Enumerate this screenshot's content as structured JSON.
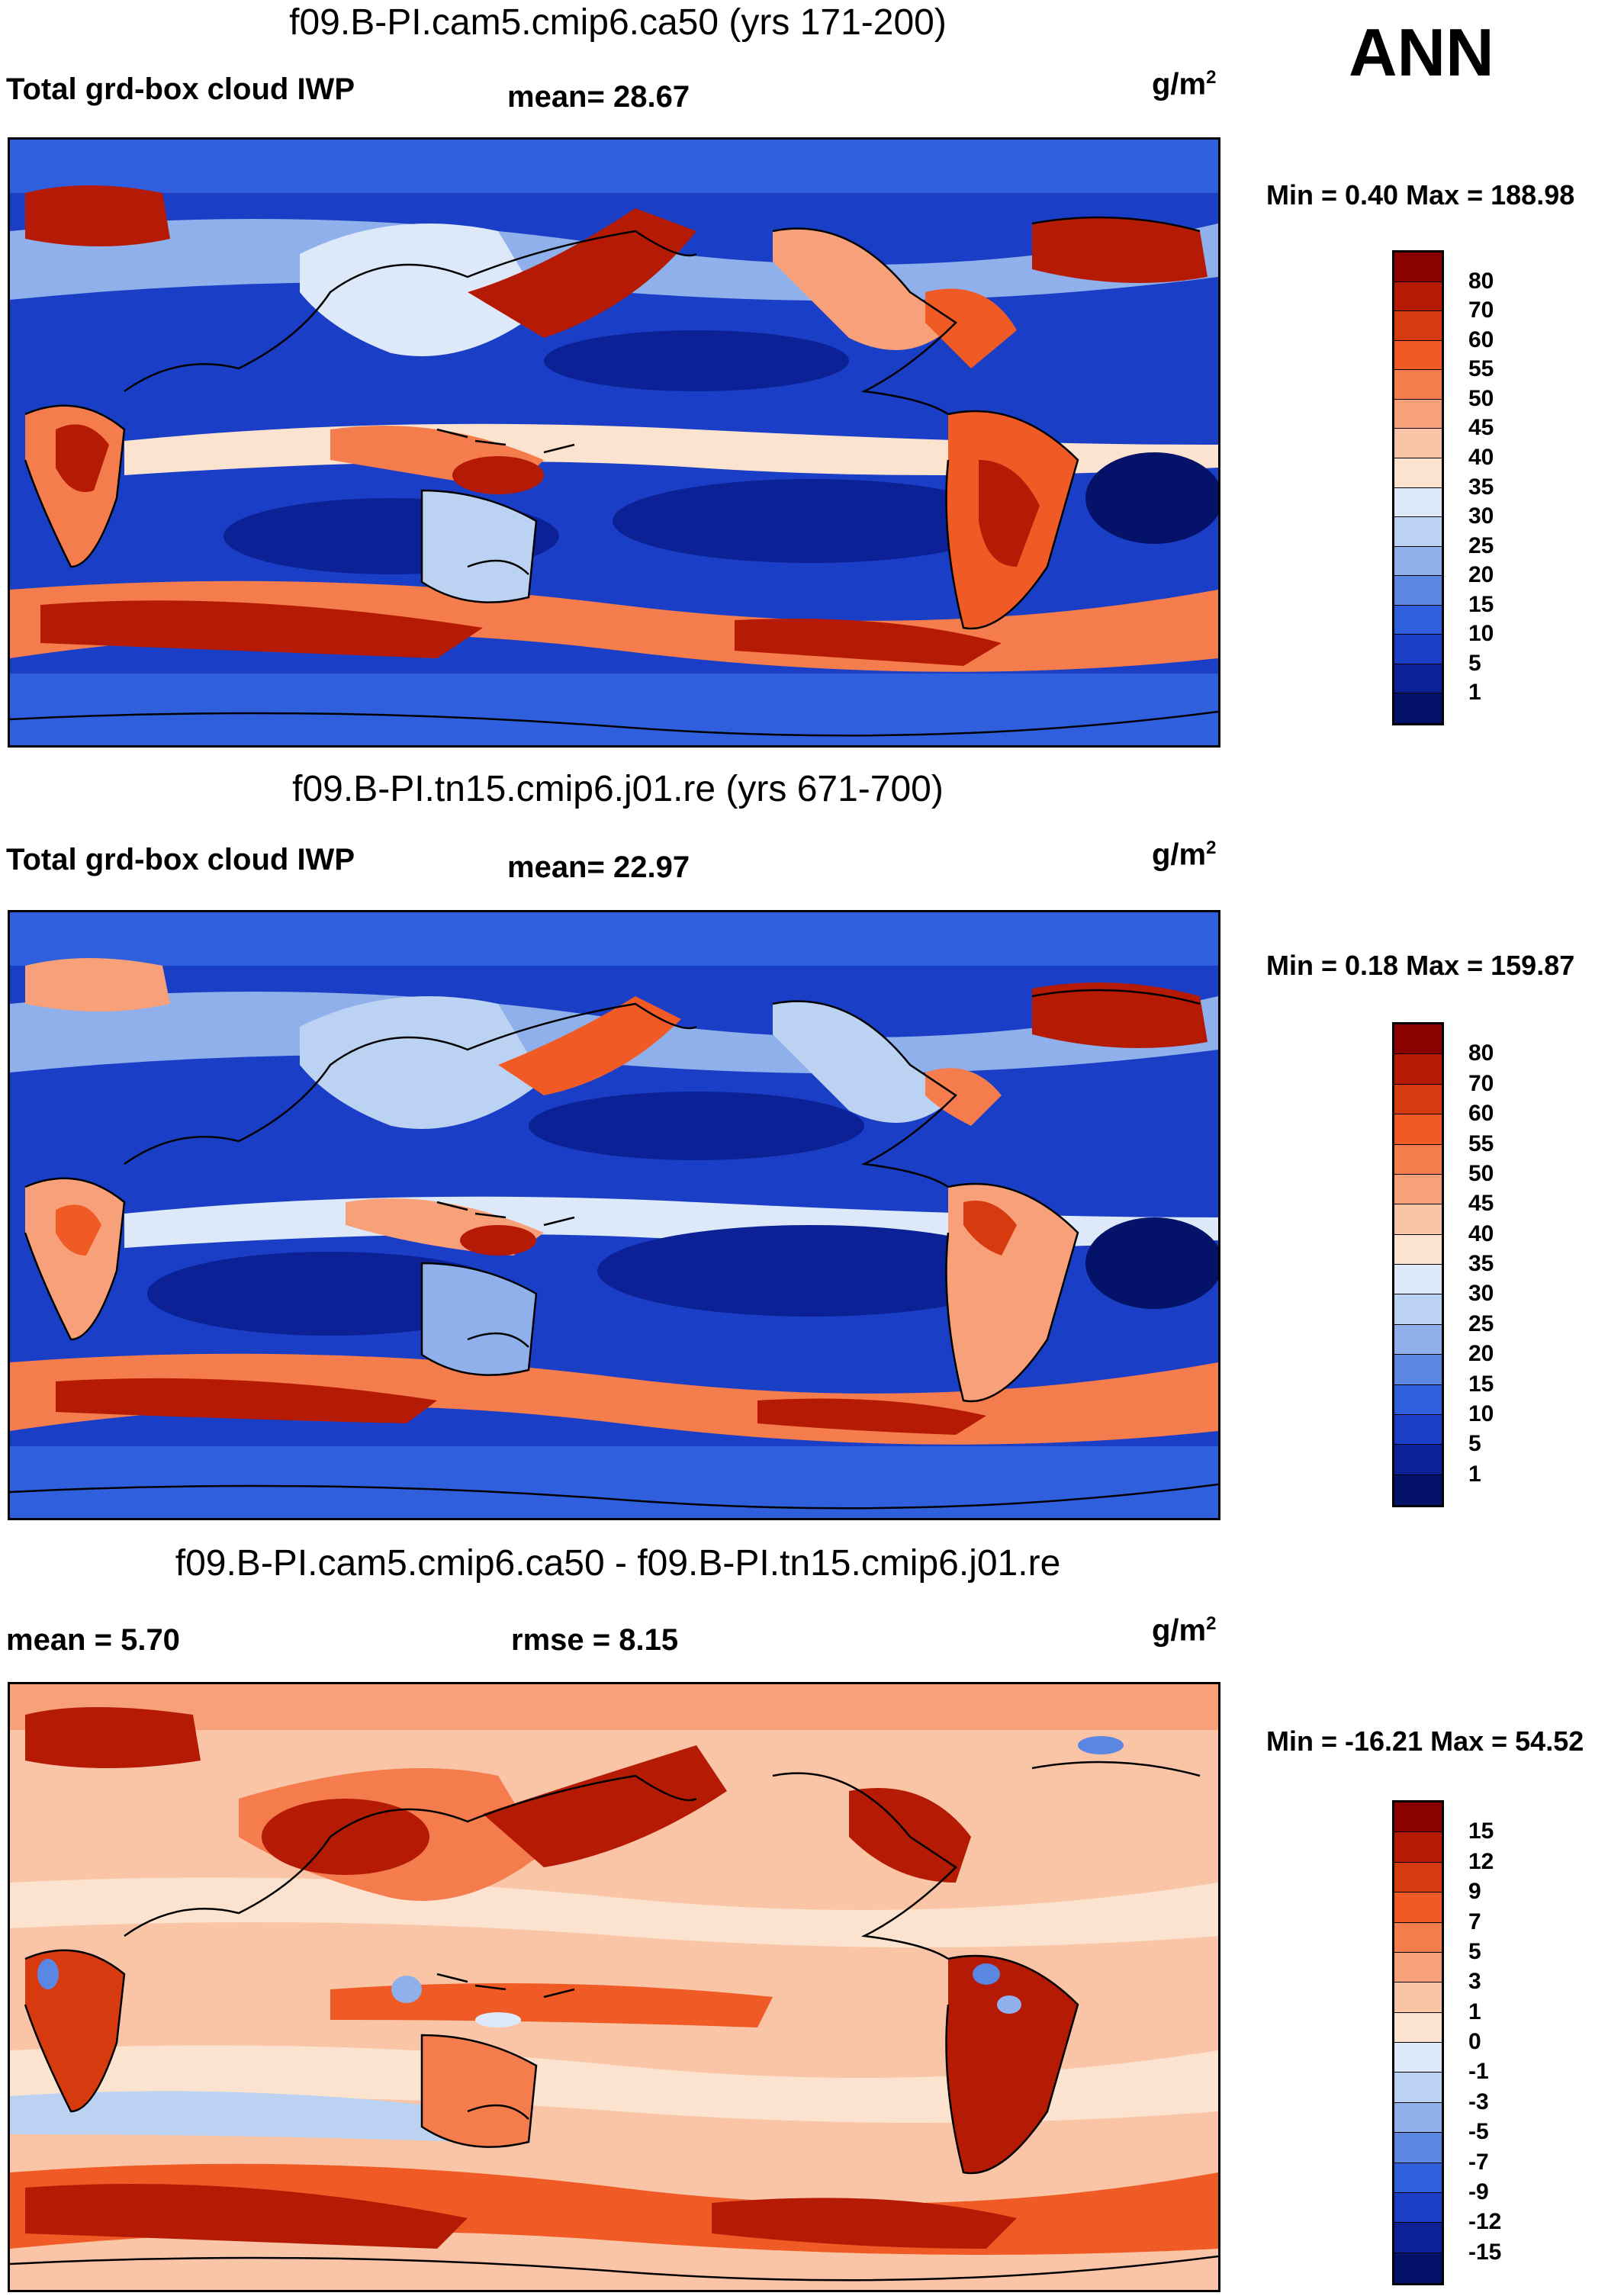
{
  "season": "ANN",
  "panels": [
    {
      "title": "f09.B-PI.cam5.cmip6.ca50 (yrs 171-200)",
      "left_label": "Total grd-box cloud IWP",
      "center_label": "mean=  28.67",
      "units_base": "g/m",
      "units_exp": "2",
      "minmax": "Min =   0.40 Max = 188.98"
    },
    {
      "title": "f09.B-PI.tn15.cmip6.j01.re (yrs 671-700)",
      "left_label": "Total grd-box cloud IWP",
      "center_label": "mean=  22.97",
      "units_base": "g/m",
      "units_exp": "2",
      "minmax": "Min =   0.18 Max = 159.87"
    },
    {
      "title": "f09.B-PI.cam5.cmip6.ca50 - f09.B-PI.tn15.cmip6.j01.re",
      "left_label": "mean =   5.70",
      "center_label": "rmse =   8.15",
      "units_base": "g/m",
      "units_exp": "2",
      "minmax": "Min = -16.21 Max =  54.52"
    }
  ],
  "colorbars": {
    "absolute": {
      "labels": [
        "80",
        "70",
        "60",
        "55",
        "50",
        "45",
        "40",
        "35",
        "30",
        "25",
        "20",
        "15",
        "10",
        "5",
        "1"
      ],
      "colors": [
        "#8b0000",
        "#b51a05",
        "#d83a10",
        "#f05a25",
        "#f47c4d",
        "#f7a07a",
        "#f9c5a6",
        "#fbe3cf",
        "#dde9f8",
        "#bcd2f2",
        "#8fb0ea",
        "#5b87e2",
        "#2f5fdc",
        "#1a3fc6",
        "#0c2196",
        "#04126a"
      ]
    },
    "difference": {
      "labels": [
        "15",
        "12",
        "9",
        "7",
        "5",
        "3",
        "1",
        "0",
        "-1",
        "-3",
        "-5",
        "-7",
        "-9",
        "-12",
        "-15"
      ],
      "colors": [
        "#8b0000",
        "#b51a05",
        "#d83a10",
        "#f05a25",
        "#f47c4d",
        "#f7a07a",
        "#f9c5a6",
        "#fbe3cf",
        "#dde9f8",
        "#bcd2f2",
        "#8fb0ea",
        "#5b87e2",
        "#2f5fdc",
        "#1a3fc6",
        "#0c2196",
        "#04126a"
      ]
    }
  },
  "map_palette": {
    "ocean_low": "#0c2196",
    "ocean_mid": "#2f5fdc",
    "light": "#dde9f8",
    "neutral": "#fbe3cf",
    "warm": "#f47c4d",
    "hot": "#b51a05",
    "coast": "#000000"
  }
}
